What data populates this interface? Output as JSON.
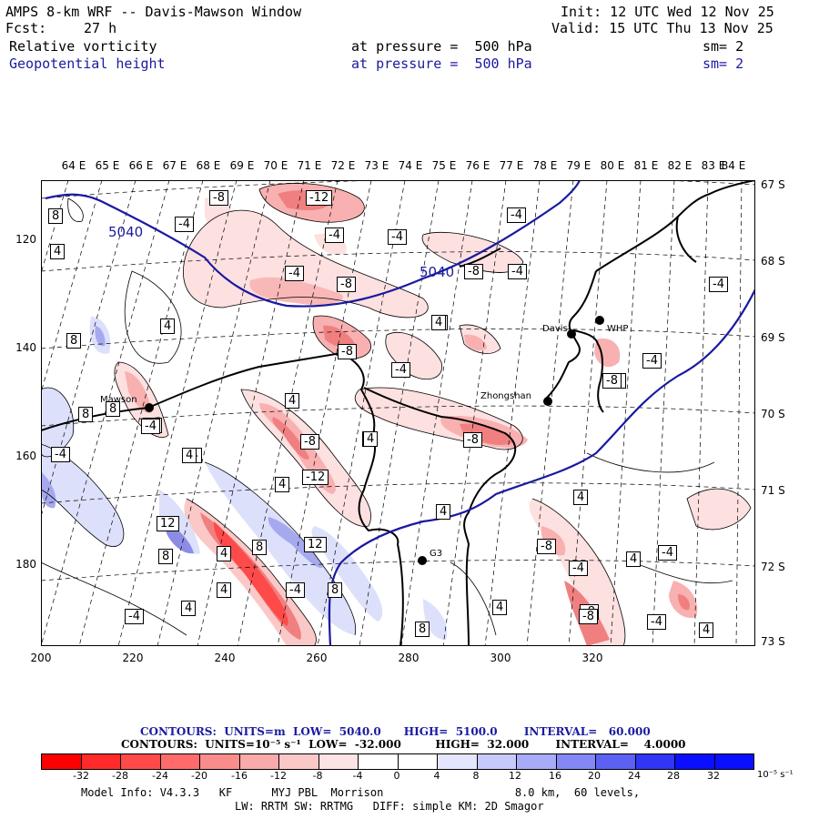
{
  "header": {
    "title": "AMPS 8-km WRF -- Davis-Mawson Window",
    "init": "Init: 12 UTC Wed 12 Nov 25",
    "fcst_label": "Fcst:",
    "fcst_value": "27 h",
    "valid": "Valid: 15 UTC Thu 13 Nov 25",
    "field1": "Relative vorticity",
    "field1_level": "at pressure =  500 hPa",
    "field1_sm": "sm= 2",
    "field2": "Geopotential height",
    "field2_level": "at pressure =  500 hPa",
    "field2_sm": "sm= 2"
  },
  "map": {
    "longitude_labels": [
      "64 E",
      "65 E",
      "66 E",
      "67 E",
      "68 E",
      "69 E",
      "70 E",
      "71 E",
      "72 E",
      "73 E",
      "74 E",
      "75 E",
      "76 E",
      "77 E",
      "78 E",
      "79 E",
      "80 E",
      "81 E",
      "82 E",
      "83 E",
      "84 E"
    ],
    "latitude_labels": [
      "67 S",
      "68 S",
      "69 S",
      "70 S",
      "71 S",
      "72 S",
      "73 S"
    ],
    "y_ticks": [
      "120",
      "140",
      "160",
      "180"
    ],
    "x_ticks": [
      "200",
      "220",
      "240",
      "260",
      "280",
      "300",
      "320"
    ],
    "stations": {
      "mawson": "Mawson",
      "davis": "Davis",
      "whp": "WHP",
      "zhongshan": "Zhongshan",
      "g3": "G3"
    },
    "height_contour_value": "5040",
    "vorticity_labels": [
      "-8",
      "-12",
      "-4",
      "-4",
      "-4",
      "8",
      "4",
      "-4",
      "-8",
      "-4",
      "-8",
      "-4",
      "-4",
      "-8",
      "-4",
      "4",
      "4",
      "8",
      "-8",
      "-4",
      "-4",
      "8",
      "8",
      "-4",
      "4",
      "4",
      "-4",
      "4",
      "-8",
      "-8",
      "4",
      "-12",
      "4",
      "4",
      "-8",
      "-8",
      "4",
      "12",
      "8",
      "4",
      "4",
      "8",
      "12",
      "-4",
      "-4",
      "8",
      "-8",
      "-4",
      "4",
      "4",
      "-4",
      "4",
      "-4",
      "4",
      "-4",
      "-8",
      "8",
      "4",
      "4"
    ],
    "colors": {
      "height": "#1a1aa0",
      "border": "#000000",
      "neg_strong": "#f08080",
      "neg_weak": "#fde0e0",
      "pos_strong": "#8c8ce6",
      "pos_weak": "#dde0fb"
    }
  },
  "footer": {
    "contours1": "CONTOURS:  UNITS=m  LOW=  5040.0      HIGH=  5100.0       INTERVAL=   60.000",
    "contours2": "CONTOURS:  UNITS=10⁻⁵ s⁻¹  LOW=  -32.000         HIGH=  32.000       INTERVAL=    4.0000",
    "model_info": "Model Info: V4.3.3   KF      MYJ PBL  Morrison                    8.0 km,  60 levels,",
    "model_info2": "LW: RRTM SW: RRTMG   DIFF: simple KM: 2D Smagor"
  },
  "colorbar": {
    "labels": [
      "-32",
      "-28",
      "-24",
      "-20",
      "-16",
      "-12",
      "-8",
      "-4",
      "0",
      "4",
      "8",
      "12",
      "16",
      "20",
      "24",
      "28",
      "32"
    ],
    "units": "10⁻⁵ s⁻¹",
    "colors": [
      "#ff0000",
      "#ff2a2a",
      "#ff4a4a",
      "#ff6b6b",
      "#fb8c8c",
      "#f9aaaa",
      "#fbc8c8",
      "#fde4e4",
      "#ffffff",
      "#ffffff",
      "#e4e6fd",
      "#c6c9fb",
      "#a7abf8",
      "#8488f5",
      "#5c60f3",
      "#3036f6",
      "#0a10ff"
    ]
  }
}
